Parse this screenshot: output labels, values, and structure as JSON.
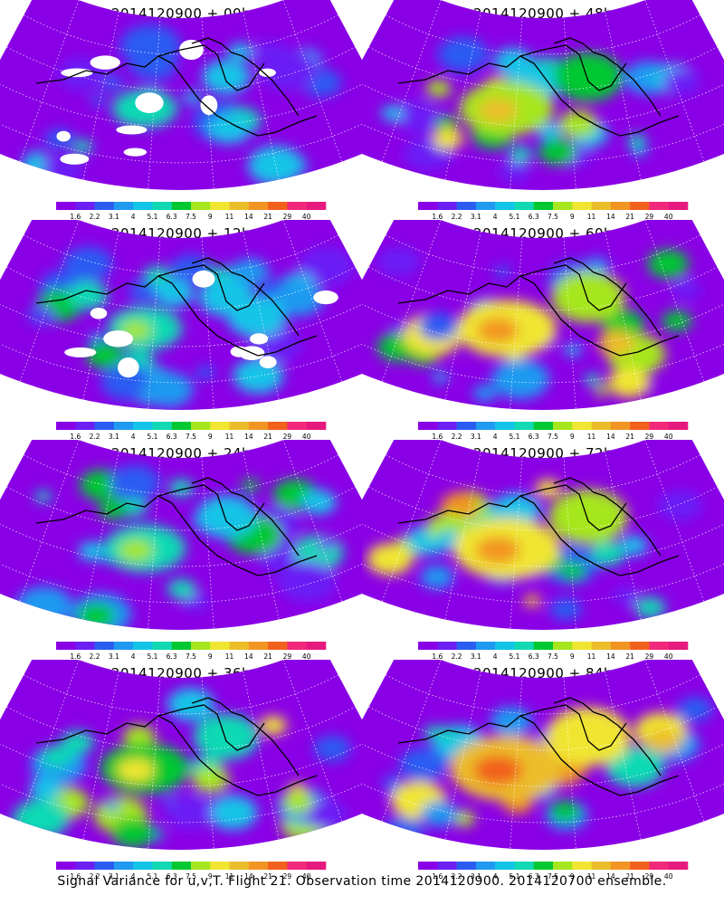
{
  "panels": [
    {
      "title": "2014120900 + 00h",
      "intensity": 0.15
    },
    {
      "title": "2014120900 + 48h",
      "intensity": 0.55
    },
    {
      "title": "2014120900 + 12h",
      "intensity": 0.28
    },
    {
      "title": "2014120900 + 60h",
      "intensity": 0.62
    },
    {
      "title": "2014120900 + 24h",
      "intensity": 0.38
    },
    {
      "title": "2014120900 + 72h",
      "intensity": 0.72
    },
    {
      "title": "2014120900 + 36h",
      "intensity": 0.47
    },
    {
      "title": "2014120900 + 84h",
      "intensity": 0.82
    }
  ],
  "colorbar": {
    "labels": [
      "1.6",
      "2.2",
      "3.1",
      "4",
      "5.1",
      "6.3",
      "7.5",
      "9",
      "11",
      "14",
      "21",
      "29",
      "40"
    ],
    "colors": [
      "#8a00e6",
      "#6b1ff5",
      "#2b5cf2",
      "#1f9af0",
      "#12c4e8",
      "#10d9b4",
      "#00c832",
      "#a6e61e",
      "#f0e632",
      "#ebbd2b",
      "#f29424",
      "#f2601e",
      "#f2287a",
      "#e6197f"
    ]
  },
  "caption": "Signal Variance for u,v,T. Flight 21. Observation time 2014120900. 2014120700 ensemble."
}
